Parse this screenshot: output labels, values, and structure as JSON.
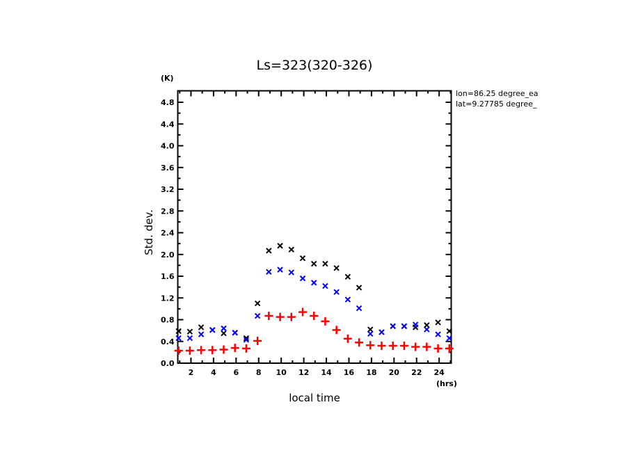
{
  "chart_data": {
    "type": "scatter",
    "title": "Ls=323(320-326)",
    "xlabel": "local time",
    "ylabel": "Std. dev.",
    "x_unit": "(hrs)",
    "y_unit": "(K)",
    "xlim": [
      0.83,
      25.07
    ],
    "ylim": [
      0.0,
      5.0
    ],
    "x_ticks": [
      2,
      4,
      6,
      8,
      10,
      12,
      14,
      16,
      18,
      20,
      22,
      24
    ],
    "x_tick_labels": [
      "2",
      "4",
      "6",
      "8",
      "10",
      "12",
      "14",
      "16",
      "18",
      "20",
      "22",
      "24"
    ],
    "y_ticks": [
      0.0,
      0.4,
      0.8,
      1.2,
      1.6,
      2.0,
      2.4,
      2.8,
      3.2,
      3.6,
      4.0,
      4.4,
      4.8
    ],
    "y_tick_labels": [
      "0.0",
      "0.4",
      "0.8",
      "1.2",
      "1.6",
      "2.0",
      "2.4",
      "2.8",
      "3.2",
      "3.6",
      "4.0",
      "4.4",
      "4.8"
    ],
    "grid": false,
    "annotations": [
      "lon=86.25 degree_ea",
      "lat=9.27785 degree_"
    ],
    "x": [
      0.9,
      1.9,
      2.9,
      3.9,
      4.9,
      5.9,
      6.9,
      7.9,
      8.9,
      9.9,
      10.9,
      11.9,
      12.9,
      13.9,
      14.9,
      15.9,
      16.9,
      17.9,
      18.9,
      19.9,
      20.9,
      21.9,
      22.9,
      23.9,
      24.9
    ],
    "series": [
      {
        "name": "black",
        "color": "#000000",
        "marker": "x",
        "values": [
          0.59,
          0.58,
          0.66,
          0.61,
          0.55,
          0.56,
          0.46,
          1.1,
          2.07,
          2.16,
          2.09,
          1.93,
          1.83,
          1.83,
          1.75,
          1.59,
          1.39,
          0.62,
          0.57,
          0.68,
          0.68,
          0.66,
          0.7,
          0.75,
          0.59
        ]
      },
      {
        "name": "blue",
        "color": "#0000ff",
        "marker": "x",
        "values": [
          0.46,
          0.46,
          0.53,
          0.61,
          0.64,
          0.56,
          0.43,
          0.87,
          1.68,
          1.72,
          1.67,
          1.56,
          1.48,
          1.42,
          1.31,
          1.17,
          1.01,
          0.54,
          0.57,
          0.68,
          0.68,
          0.71,
          0.62,
          0.53,
          0.46
        ]
      },
      {
        "name": "red",
        "color": "#ff0000",
        "marker": "+",
        "values": [
          0.23,
          0.23,
          0.24,
          0.24,
          0.25,
          0.28,
          0.27,
          0.41,
          0.87,
          0.85,
          0.85,
          0.94,
          0.87,
          0.77,
          0.61,
          0.45,
          0.38,
          0.33,
          0.32,
          0.32,
          0.32,
          0.3,
          0.3,
          0.27,
          0.27
        ]
      }
    ]
  }
}
